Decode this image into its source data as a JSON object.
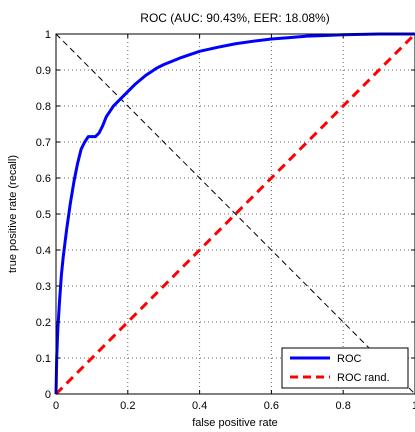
{
  "chart_data": {
    "type": "line",
    "title": "ROC (AUC: 90.43%, EER: 18.08%)",
    "xlabel": "false positive rate",
    "ylabel": "true positive rate (recall)",
    "xlim": [
      0,
      1
    ],
    "ylim": [
      0,
      1
    ],
    "grid": true,
    "legend_position": "bottom-right",
    "x_ticks": [
      "0",
      "0.2",
      "0.4",
      "0.6",
      "0.8",
      "1"
    ],
    "y_ticks": [
      "0",
      "0.1",
      "0.2",
      "0.3",
      "0.4",
      "0.5",
      "0.6",
      "0.7",
      "0.8",
      "0.9",
      "1"
    ],
    "series": [
      {
        "name": "ROC",
        "color": "#0000ff",
        "style": "solid",
        "x": [
          0,
          0.002,
          0.005,
          0.01,
          0.015,
          0.02,
          0.03,
          0.04,
          0.05,
          0.06,
          0.07,
          0.08,
          0.09,
          0.1,
          0.11,
          0.12,
          0.13,
          0.14,
          0.15,
          0.16,
          0.18,
          0.2,
          0.22,
          0.25,
          0.28,
          0.3,
          0.35,
          0.4,
          0.45,
          0.5,
          0.55,
          0.6,
          0.65,
          0.7,
          0.75,
          0.8,
          0.85,
          0.9,
          1.0
        ],
        "y": [
          0,
          0.1,
          0.18,
          0.26,
          0.33,
          0.38,
          0.46,
          0.53,
          0.59,
          0.64,
          0.68,
          0.7,
          0.715,
          0.715,
          0.715,
          0.725,
          0.745,
          0.77,
          0.785,
          0.8,
          0.82,
          0.84,
          0.86,
          0.885,
          0.905,
          0.915,
          0.935,
          0.952,
          0.963,
          0.973,
          0.98,
          0.986,
          0.99,
          0.994,
          0.996,
          0.998,
          0.999,
          1.0,
          1.0
        ]
      },
      {
        "name": "ROC rand.",
        "color": "#ff0000",
        "style": "dashed",
        "x": [
          0,
          1
        ],
        "y": [
          0,
          1
        ]
      }
    ],
    "eer_line": {
      "color": "#000000",
      "style": "dashed",
      "x": [
        0,
        1
      ],
      "y": [
        1,
        0
      ]
    }
  }
}
